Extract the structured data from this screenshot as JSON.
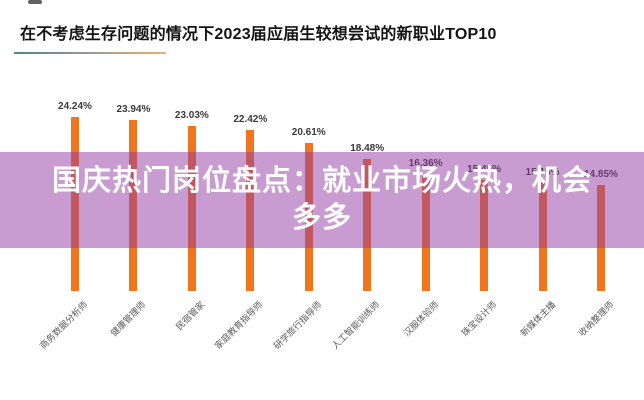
{
  "page": {
    "background_color": "#ffffff"
  },
  "header": {
    "title": "在不考虑生存问题的情况下2023届应届生较想尝试的新职业TOP10",
    "underline_gradient": [
      "#4e8287",
      "#e7b077"
    ]
  },
  "overlay_banner": {
    "full_text": "国庆热门岗位盘点：就业市场火热，机会多多",
    "line1": "国庆热门岗位盘点：就业市场火热，机会",
    "line2": "多多",
    "background_color": "#9139a1",
    "background_opacity": 0.5,
    "text_color": "#ffffff"
  },
  "chart_data": {
    "type": "bar",
    "title": "在不考虑生存问题的情况下2023届应届生较想尝试的新职业TOP10",
    "categories": [
      "商务数据分析师",
      "健康管理师",
      "民宿管家",
      "家庭教育指导师",
      "研学旅行指导师",
      "人工智能训练师",
      "汉服体验师",
      "珠宝设计师",
      "新媒体主播",
      "收纳整理师"
    ],
    "values": [
      24.24,
      23.94,
      23.03,
      22.42,
      20.61,
      18.48,
      16.36,
      15.45,
      15.15,
      14.85
    ],
    "value_labels": [
      "24.24%",
      "23.94%",
      "23.03%",
      "22.42%",
      "20.61%",
      "18.48%",
      "16.36%",
      "15.45%",
      "15.15%",
      "14.85%"
    ],
    "bar_color": "#f0751c",
    "value_label_color": "#3a3a3a",
    "category_label_color": "#595959",
    "xlabel": "",
    "ylabel": "",
    "ylim": [
      0,
      26
    ],
    "grid": false,
    "legend": false
  }
}
